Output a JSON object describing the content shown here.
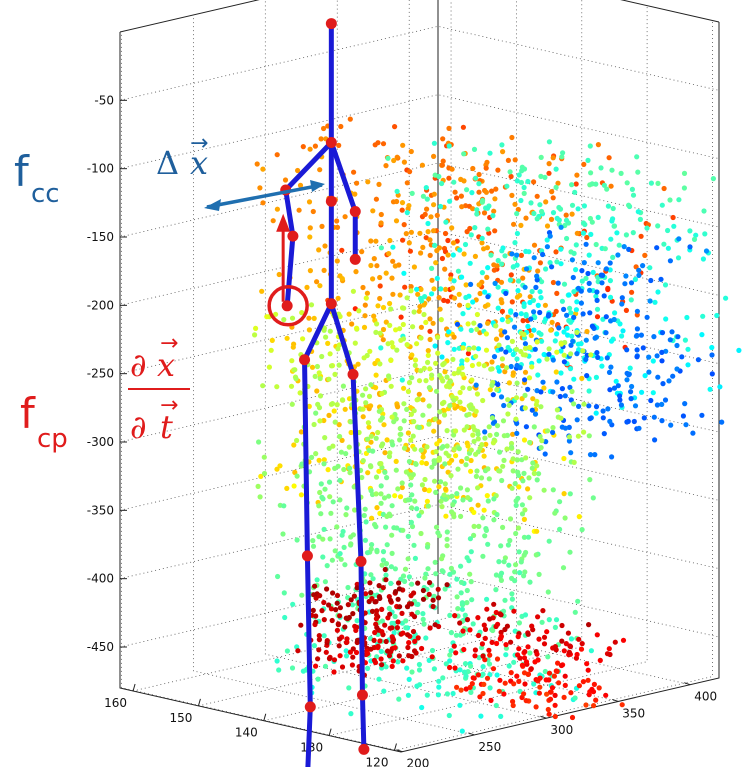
{
  "chart_data": {
    "type": "scatter",
    "projection": "3d",
    "title": "",
    "xlabel": "",
    "ylabel": "",
    "zlabel": "",
    "grid": true,
    "legend": "none",
    "colormap": "jet",
    "z_axis": {
      "ticks": [
        -50,
        -100,
        -150,
        -200,
        -250,
        -300,
        -350,
        -400,
        -450
      ],
      "labels": [
        "-50",
        "-100",
        "-150",
        "-200",
        "-250",
        "-300",
        "-350",
        "-400",
        "-450"
      ]
    },
    "x_axis": {
      "ticks": [
        160,
        150,
        140,
        130,
        120
      ],
      "labels": [
        "160",
        "150",
        "140",
        "130",
        "120"
      ]
    },
    "y_axis": {
      "ticks": [
        200,
        250,
        300,
        350,
        400
      ],
      "labels": [
        "200",
        "250",
        "300",
        "350",
        "400"
      ]
    },
    "skeleton": {
      "color": "#1a1ad6",
      "joint_color": "#e01c1c",
      "joints": {
        "head": [
          153,
          305,
          -10
        ],
        "neck": [
          153,
          305,
          -97
        ],
        "spine_mid": [
          153,
          305,
          -140
        ],
        "hip_center": [
          153,
          305,
          -215
        ],
        "r_shoulder": [
          158,
          296,
          -135
        ],
        "r_elbow": [
          158,
          301,
          -170
        ],
        "r_hand": [
          158,
          297,
          -220
        ],
        "l_shoulder": [
          150,
          308,
          -145
        ],
        "l_hand": [
          150,
          308,
          -180
        ],
        "r_hip": [
          156,
          300,
          -258
        ],
        "l_hip": [
          151,
          311,
          -266
        ],
        "r_knee": [
          156,
          302,
          -402
        ],
        "l_knee": [
          150,
          312,
          -402
        ],
        "r_ankle": [
          156,
          304,
          -513
        ],
        "l_ankle": [
          150,
          313,
          -500
        ],
        "r_foot": [
          157,
          306,
          -582
        ],
        "l_foot": [
          150,
          314,
          -540
        ]
      },
      "bones": [
        [
          "head",
          "neck"
        ],
        [
          "neck",
          "r_shoulder"
        ],
        [
          "neck",
          "l_shoulder"
        ],
        [
          "neck",
          "spine_mid"
        ],
        [
          "spine_mid",
          "hip_center"
        ],
        [
          "r_shoulder",
          "r_elbow"
        ],
        [
          "r_elbow",
          "r_hand"
        ],
        [
          "l_shoulder",
          "l_hand"
        ],
        [
          "hip_center",
          "r_hip"
        ],
        [
          "hip_center",
          "l_hip"
        ],
        [
          "r_hip",
          "r_knee"
        ],
        [
          "r_knee",
          "r_ankle"
        ],
        [
          "r_ankle",
          "r_foot"
        ],
        [
          "l_hip",
          "l_knee"
        ],
        [
          "l_knee",
          "l_ankle"
        ],
        [
          "l_ankle",
          "l_foot"
        ]
      ]
    },
    "point_cloud": {
      "blobs": [
        {
          "z": [
            -250,
            -100
          ],
          "x": [
            120,
            158
          ],
          "y": [
            320,
            410
          ],
          "depth_from": 0.78,
          "depth_to": 0.82,
          "n": 130
        },
        {
          "z": [
            -360,
            -90
          ],
          "x": [
            125,
            160
          ],
          "y": [
            275,
            360
          ],
          "depth_from": 0.75,
          "depth_to": 0.65,
          "n": 500
        },
        {
          "z": [
            -270,
            -110
          ],
          "x": [
            118,
            152
          ],
          "y": [
            320,
            430
          ],
          "depth_from": 0.45,
          "depth_to": 0.38,
          "n": 380
        },
        {
          "z": [
            -320,
            -170
          ],
          "x": [
            121,
            144
          ],
          "y": [
            350,
            440
          ],
          "depth_from": 0.24,
          "depth_to": 0.22,
          "n": 240
        },
        {
          "z": [
            -500,
            -225
          ],
          "x": [
            128,
            161
          ],
          "y": [
            280,
            380
          ],
          "depth_from": 0.58,
          "depth_to": 0.42,
          "n": 950
        },
        {
          "z": [
            -470,
            -410
          ],
          "x": [
            140,
            150
          ],
          "y": [
            265,
            330
          ],
          "depth_from": 0.95,
          "depth_to": 0.9,
          "n": 200
        },
        {
          "z": [
            -490,
            -430
          ],
          "x": [
            120,
            140
          ],
          "y": [
            315,
            365
          ],
          "depth_from": 0.92,
          "depth_to": 0.84,
          "n": 180
        }
      ]
    }
  },
  "annotations": {
    "f_cc": {
      "base": "f",
      "subscript": "cc",
      "color": "#1f5f9c"
    },
    "f_cp": {
      "base": "f",
      "subscript": "cp",
      "color": "#e01c1c"
    },
    "delta_x": {
      "delta": "Δ",
      "var": "x",
      "arrow": "→",
      "color": "#1f5f9c"
    },
    "partial": {
      "num_d": "∂",
      "num_var": "x",
      "den_d": "∂",
      "den_var": "t",
      "arrow": "→",
      "color": "#e01c1c"
    }
  }
}
